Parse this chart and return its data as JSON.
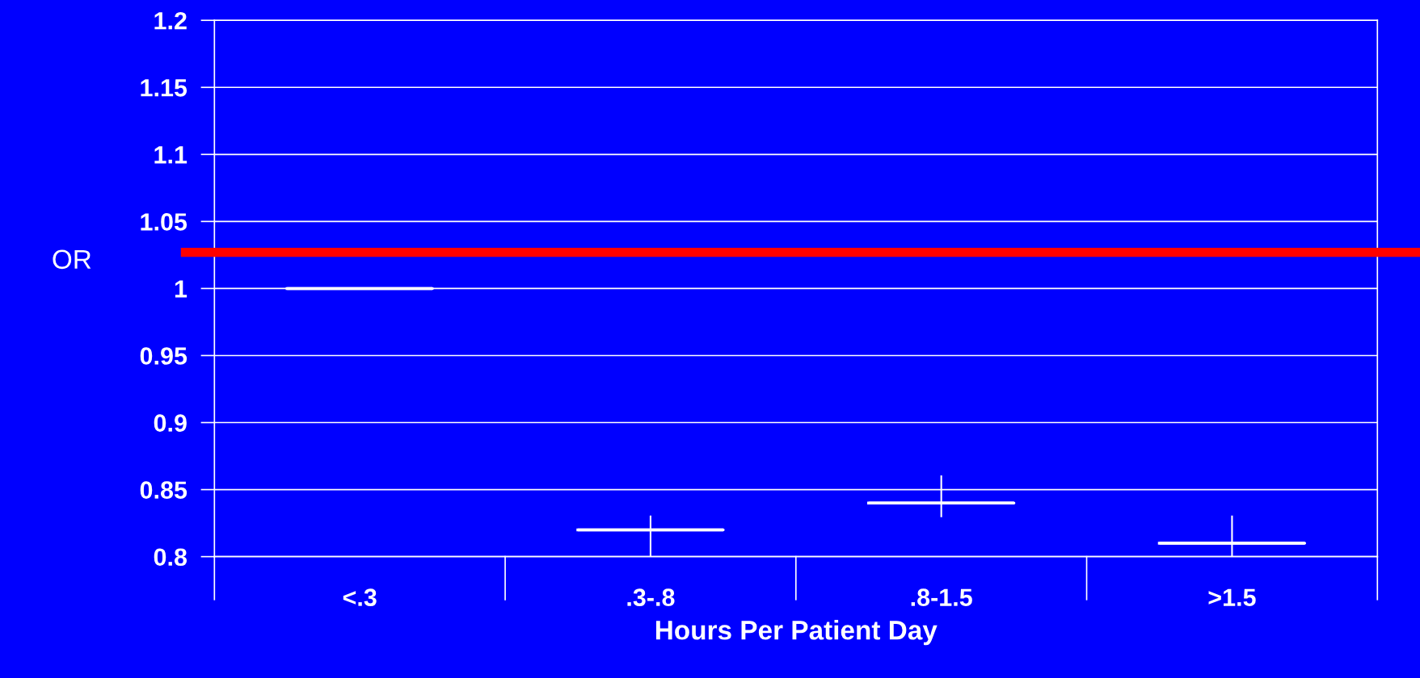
{
  "chart_data": {
    "type": "box",
    "xlabel": "Hours Per Patient Day",
    "ylabel": "OR",
    "categories": [
      "<.3",
      ".3-.8",
      ".8-1.5",
      ">1.5"
    ],
    "color": "#ffffff",
    "boxes": [
      {
        "low": 1.0,
        "q1": 1.0,
        "median": 1.0,
        "q3": 1.0,
        "high": 1.0
      },
      {
        "low": 0.8,
        "q1": 0.82,
        "median": 0.82,
        "q3": 0.82,
        "high": 0.83
      },
      {
        "low": 0.83,
        "q1": 0.84,
        "median": 0.84,
        "q3": 0.84,
        "high": 0.86
      },
      {
        "low": 0.8,
        "q1": 0.81,
        "median": 0.81,
        "q3": 0.81,
        "high": 0.83
      }
    ],
    "ylim": [
      0.8,
      1.2
    ],
    "yticks": [
      {
        "value": 0.8,
        "label": "0.8"
      },
      {
        "value": 0.85,
        "label": "0.85"
      },
      {
        "value": 0.9,
        "label": "0.9"
      },
      {
        "value": 0.95,
        "label": "0.95"
      },
      {
        "value": 1.0,
        "label": "1"
      },
      {
        "value": 1.05,
        "label": "1.05"
      },
      {
        "value": 1.1,
        "label": "1.1"
      },
      {
        "value": 1.15,
        "label": "1.15"
      },
      {
        "value": 1.2,
        "label": "1.2"
      }
    ],
    "grid": "y",
    "ref_lines": [
      {
        "axis": "y",
        "value": 1.027,
        "color": "#ff0000"
      }
    ]
  }
}
